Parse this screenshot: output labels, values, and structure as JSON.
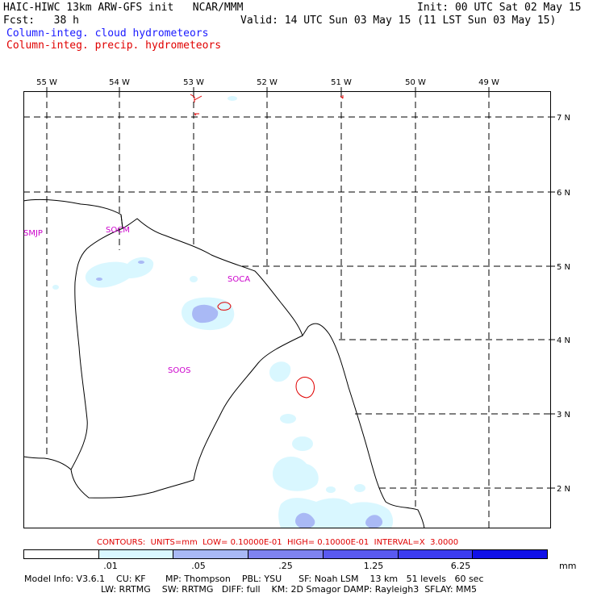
{
  "header": {
    "line1_left": "HAIC-HIWC 13km ARW-GFS init   NCAR/MMM",
    "line1_right": "Init: 00 UTC Sat 02 May 15",
    "line2_left": "Fcst:   38 h",
    "line2_right": "Valid: 14 UTC Sun 03 May 15 (11 LST Sun 03 May 15)",
    "line3": "Column-integ. cloud hydrometeors",
    "line4": "Column-integ. precip. hydrometeors"
  },
  "colors": {
    "cloud_label": "#1a1aff",
    "precip_label": "#e00000",
    "station_label": "#cc00cc",
    "shade_1": "#d9f7ff",
    "shade_2": "#a9b9f5",
    "shade_3": "#7f83f0",
    "shade_4": "#5a5af0",
    "shade_5": "#3c3cf0",
    "shade_6": "#1010e8"
  },
  "map": {
    "lon_labels": [
      "55 W",
      "54 W",
      "53 W",
      "52 W",
      "51 W",
      "50 W",
      "49 W"
    ],
    "lat_labels": [
      "7 N",
      "6 N",
      "5 N",
      "4 N",
      "3 N",
      "2 N"
    ],
    "stations": [
      "SMJP",
      "SOCM",
      "SOCA",
      "SOOS"
    ]
  },
  "contours_line": "CONTOURS:  UNITS=mm  LOW= 0.10000E-01  HIGH= 0.10000E-01  INTERVAL=X  3.0000",
  "legend": {
    "labels": [
      ".01",
      ".05",
      ".25",
      "1.25",
      "6.25"
    ],
    "units": "mm"
  },
  "model_info": {
    "line1": "Model Info: V3.6.1    CU: KF       MP: Thompson    PBL: YSU      SF: Noah LSM    13 km   51 levels   60 sec",
    "line2": "LW: RRTMG    SW: RRTMG   DIFF: full    KM: 2D Smagor DAMP: Rayleigh3  SFLAY: MM5"
  }
}
